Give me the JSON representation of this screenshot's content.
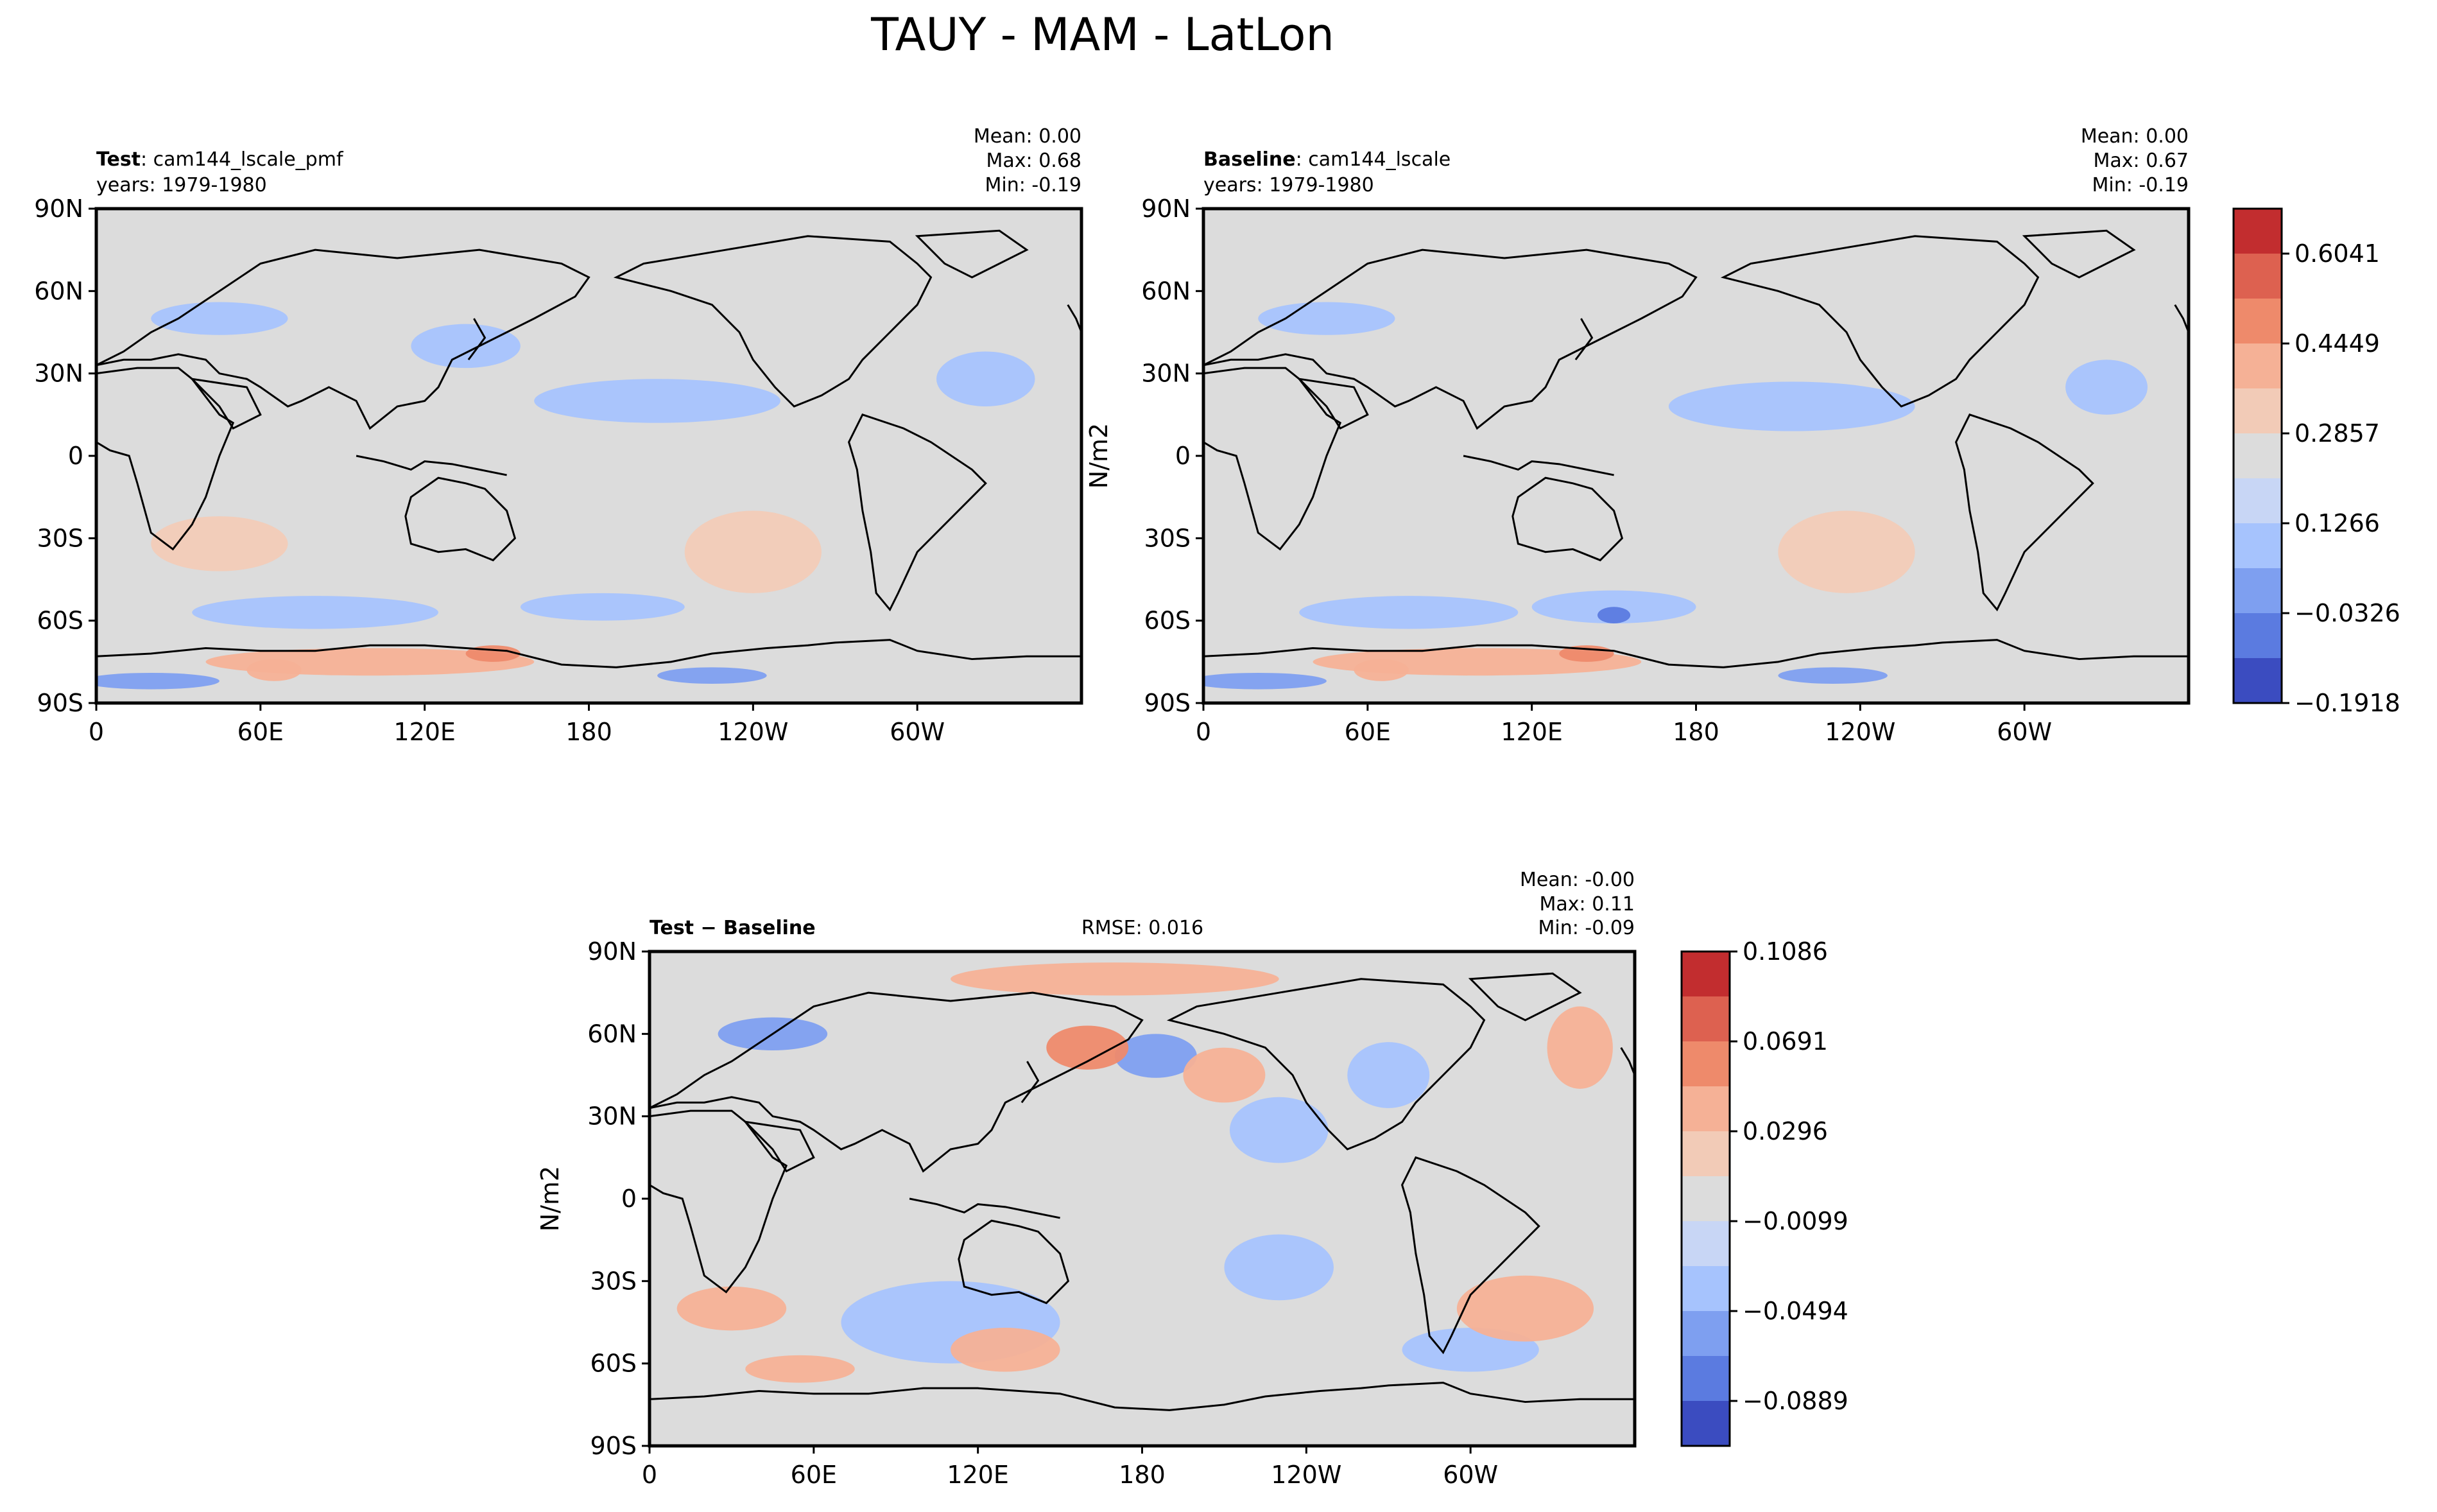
{
  "figure": {
    "title": "TAUY - MAM - LatLon"
  },
  "colors": {
    "land_fill": "#dcdcdc",
    "coast": "#000000",
    "cmap": [
      "#3b4cc0",
      "#5b7be0",
      "#7e9ff0",
      "#a6c3fd",
      "#c8d6f5",
      "#dcdcdc",
      "#f2cbb7",
      "#f5b196",
      "#ee8a6b",
      "#dd6150",
      "#c22d2f"
    ]
  },
  "chart_data": [
    {
      "type": "heatmap",
      "panel": "test",
      "header": {
        "label_bold": "Test",
        "label_rest": ": cam144_lscale_pmf",
        "years": "years: 1979-1980",
        "stats": [
          "Mean:  0.00",
          "Max:  0.68",
          "Min: -0.19"
        ]
      },
      "x_ticks": [
        "0",
        "60E",
        "120E",
        "180",
        "120W",
        "60W"
      ],
      "y_ticks": [
        "90N",
        "60N",
        "30N",
        "0",
        "30S",
        "60S",
        "90S"
      ],
      "ylabel": "",
      "blobs": [
        {
          "lon": 205,
          "lat": 20,
          "rx": 45,
          "ry": 8,
          "level": 3
        },
        {
          "lon": 135,
          "lat": 40,
          "rx": 20,
          "ry": 8,
          "level": 3
        },
        {
          "lon": 325,
          "lat": 28,
          "rx": 18,
          "ry": 10,
          "level": 3
        },
        {
          "lon": 45,
          "lat": 50,
          "rx": 25,
          "ry": 6,
          "level": 3
        },
        {
          "lon": 80,
          "lat": -57,
          "rx": 45,
          "ry": 6,
          "level": 3
        },
        {
          "lon": 185,
          "lat": -55,
          "rx": 30,
          "ry": 5,
          "level": 3
        },
        {
          "lon": 20,
          "lat": -82,
          "rx": 25,
          "ry": 3,
          "level": 2
        },
        {
          "lon": 225,
          "lat": -80,
          "rx": 20,
          "ry": 3,
          "level": 2
        },
        {
          "lon": 240,
          "lat": -35,
          "rx": 25,
          "ry": 15,
          "level": 6
        },
        {
          "lon": 45,
          "lat": -32,
          "rx": 25,
          "ry": 10,
          "level": 6
        },
        {
          "lon": 100,
          "lat": -75,
          "rx": 60,
          "ry": 5,
          "level": 7
        },
        {
          "lon": 145,
          "lat": -72,
          "rx": 10,
          "ry": 3,
          "level": 8
        },
        {
          "lon": 65,
          "lat": -78,
          "rx": 10,
          "ry": 4,
          "level": 7
        }
      ]
    },
    {
      "type": "heatmap",
      "panel": "baseline",
      "header": {
        "label_bold": "Baseline",
        "label_rest": ": cam144_lscale",
        "years": "years: 1979-1980",
        "stats": [
          "Mean:  0.00",
          "Max:  0.67",
          "Min: -0.19"
        ]
      },
      "x_ticks": [
        "0",
        "60E",
        "120E",
        "180",
        "120W",
        "60W"
      ],
      "y_ticks": [
        "90N",
        "60N",
        "30N",
        "0",
        "30S",
        "60S",
        "90S"
      ],
      "ylabel": "N/m2",
      "colorbar": {
        "ticks": [
          "0.6041",
          "0.4449",
          "0.2857",
          "0.1266",
          "−0.0326",
          "−0.1918"
        ],
        "levels": 11
      },
      "blobs": [
        {
          "lon": 215,
          "lat": 18,
          "rx": 45,
          "ry": 9,
          "level": 3
        },
        {
          "lon": 330,
          "lat": 25,
          "rx": 15,
          "ry": 10,
          "level": 3
        },
        {
          "lon": 45,
          "lat": 50,
          "rx": 25,
          "ry": 6,
          "level": 3
        },
        {
          "lon": 75,
          "lat": -57,
          "rx": 40,
          "ry": 6,
          "level": 3
        },
        {
          "lon": 150,
          "lat": -55,
          "rx": 30,
          "ry": 6,
          "level": 3
        },
        {
          "lon": 150,
          "lat": -58,
          "rx": 6,
          "ry": 3,
          "level": 1
        },
        {
          "lon": 20,
          "lat": -82,
          "rx": 25,
          "ry": 3,
          "level": 2
        },
        {
          "lon": 230,
          "lat": -80,
          "rx": 20,
          "ry": 3,
          "level": 2
        },
        {
          "lon": 235,
          "lat": -35,
          "rx": 25,
          "ry": 15,
          "level": 6
        },
        {
          "lon": 100,
          "lat": -75,
          "rx": 60,
          "ry": 5,
          "level": 7
        },
        {
          "lon": 140,
          "lat": -72,
          "rx": 10,
          "ry": 3,
          "level": 8
        },
        {
          "lon": 65,
          "lat": -78,
          "rx": 10,
          "ry": 4,
          "level": 7
        }
      ]
    },
    {
      "type": "heatmap",
      "panel": "difference",
      "header": {
        "label_bold": "Test − Baseline",
        "rmse": "RMSE: 0.016",
        "stats": [
          "Mean: -0.00",
          "Max:  0.11",
          "Min: -0.09"
        ]
      },
      "x_ticks": [
        "0",
        "60E",
        "120E",
        "180",
        "120W",
        "60W"
      ],
      "y_ticks": [
        "90N",
        "60N",
        "30N",
        "0",
        "30S",
        "60S",
        "90S"
      ],
      "ylabel": "N/m2",
      "colorbar": {
        "ticks": [
          "0.1086",
          "0.0691",
          "0.0296",
          "−0.0099",
          "−0.0494",
          "−0.0889"
        ],
        "levels": 11
      },
      "blobs": [
        {
          "lon": 45,
          "lat": 60,
          "rx": 20,
          "ry": 6,
          "level": 2
        },
        {
          "lon": 185,
          "lat": 52,
          "rx": 15,
          "ry": 8,
          "level": 2
        },
        {
          "lon": 270,
          "lat": 45,
          "rx": 15,
          "ry": 12,
          "level": 3
        },
        {
          "lon": 230,
          "lat": 25,
          "rx": 18,
          "ry": 12,
          "level": 3
        },
        {
          "lon": 110,
          "lat": -45,
          "rx": 40,
          "ry": 15,
          "level": 3
        },
        {
          "lon": 230,
          "lat": -25,
          "rx": 20,
          "ry": 12,
          "level": 3
        },
        {
          "lon": 300,
          "lat": -55,
          "rx": 25,
          "ry": 8,
          "level": 3
        },
        {
          "lon": 160,
          "lat": 55,
          "rx": 15,
          "ry": 8,
          "level": 8
        },
        {
          "lon": 210,
          "lat": 45,
          "rx": 15,
          "ry": 10,
          "level": 7
        },
        {
          "lon": 340,
          "lat": 55,
          "rx": 12,
          "ry": 15,
          "level": 7
        },
        {
          "lon": 130,
          "lat": -55,
          "rx": 20,
          "ry": 8,
          "level": 7
        },
        {
          "lon": 30,
          "lat": -40,
          "rx": 20,
          "ry": 8,
          "level": 7
        },
        {
          "lon": 320,
          "lat": -40,
          "rx": 25,
          "ry": 12,
          "level": 7
        },
        {
          "lon": 170,
          "lat": 80,
          "rx": 60,
          "ry": 6,
          "level": 7
        },
        {
          "lon": 55,
          "lat": -62,
          "rx": 20,
          "ry": 5,
          "level": 7
        }
      ]
    }
  ]
}
